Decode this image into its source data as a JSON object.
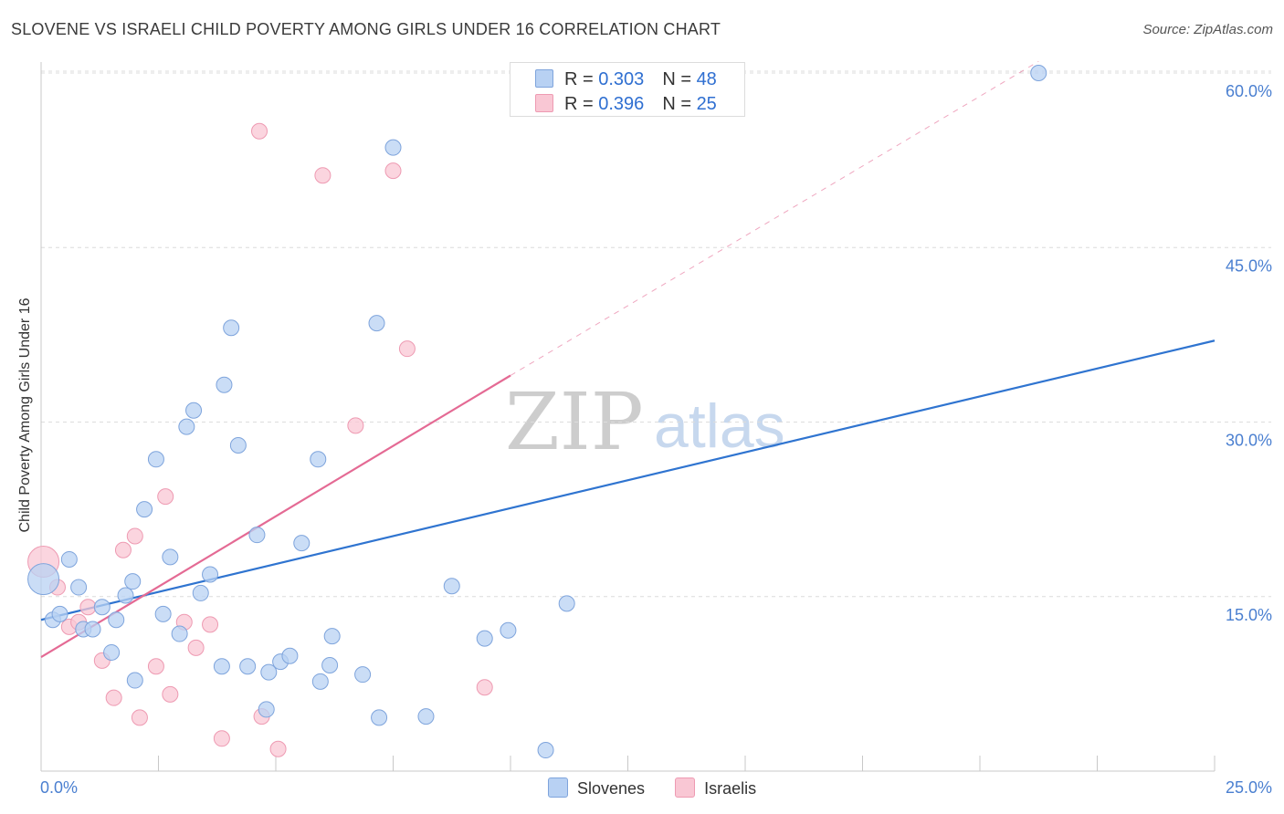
{
  "title": "SLOVENE VS ISRAELI CHILD POVERTY AMONG GIRLS UNDER 16 CORRELATION CHART",
  "source": "Source: ZipAtlas.com",
  "watermark": {
    "zip": "ZIP",
    "atlas": "atlas"
  },
  "legend_top": {
    "rows": [
      {
        "r_label": "R = ",
        "r_value": "0.303",
        "n_label": "N = ",
        "n_value": "48"
      },
      {
        "r_label": "R = ",
        "r_value": "0.396",
        "n_label": "N = ",
        "n_value": "25"
      }
    ]
  },
  "legend_bottom": {
    "items": [
      "Slovenes",
      "Israelis"
    ]
  },
  "colors": {
    "slovenes_fill": "#b8d1f3",
    "slovenes_stroke": "#7ea4dc",
    "slovenes_line": "#2f74d0",
    "israelis_fill": "#f9c7d4",
    "israelis_stroke": "#ee9ab2",
    "israelis_line": "#e46a94",
    "axis_label": "#4a7fd0",
    "grid": "#dcdcdc"
  },
  "chart_data": {
    "type": "scatter",
    "title": "SLOVENE VS ISRAELI CHILD POVERTY AMONG GIRLS UNDER 16 CORRELATION CHART",
    "xlabel": "",
    "ylabel": "Child Poverty Among Girls Under 16",
    "xlim": [
      0,
      25
    ],
    "ylim": [
      0,
      63
    ],
    "x_tick_labels": [
      {
        "value": 0,
        "label": "0.0%"
      },
      {
        "value": 25,
        "label": "25.0%"
      }
    ],
    "y_tick_labels": [
      {
        "value": 15,
        "label": "15.0%"
      },
      {
        "value": 30,
        "label": "30.0%"
      },
      {
        "value": 45,
        "label": "45.0%"
      },
      {
        "value": 60,
        "label": "60.0%"
      }
    ],
    "grid": true,
    "legend_position": "bottom",
    "series": [
      {
        "name": "Slovenes",
        "R": 0.303,
        "N": 48,
        "trend": {
          "x": [
            0,
            25
          ],
          "y": [
            13.0,
            37.0
          ]
        },
        "points": [
          [
            0.05,
            16.5
          ],
          [
            0.25,
            13.0
          ],
          [
            0.4,
            13.5
          ],
          [
            0.6,
            18.2
          ],
          [
            0.8,
            15.8
          ],
          [
            0.9,
            12.2
          ],
          [
            1.1,
            12.2
          ],
          [
            1.3,
            14.1
          ],
          [
            1.5,
            10.2
          ],
          [
            1.6,
            13.0
          ],
          [
            1.8,
            15.1
          ],
          [
            1.95,
            16.3
          ],
          [
            2.0,
            7.8
          ],
          [
            2.2,
            22.5
          ],
          [
            2.45,
            26.8
          ],
          [
            2.6,
            13.5
          ],
          [
            2.75,
            18.4
          ],
          [
            2.95,
            11.8
          ],
          [
            3.1,
            29.6
          ],
          [
            3.25,
            31.0
          ],
          [
            3.4,
            15.3
          ],
          [
            3.6,
            16.9
          ],
          [
            3.85,
            9.0
          ],
          [
            3.9,
            33.2
          ],
          [
            4.05,
            38.1
          ],
          [
            4.2,
            28.0
          ],
          [
            4.4,
            9.0
          ],
          [
            4.6,
            20.3
          ],
          [
            4.8,
            5.3
          ],
          [
            4.85,
            8.5
          ],
          [
            5.1,
            9.4
          ],
          [
            5.3,
            9.9
          ],
          [
            5.55,
            19.6
          ],
          [
            5.9,
            26.8
          ],
          [
            5.95,
            7.7
          ],
          [
            6.15,
            9.1
          ],
          [
            6.2,
            11.6
          ],
          [
            6.85,
            8.3
          ],
          [
            7.15,
            38.5
          ],
          [
            7.2,
            4.6
          ],
          [
            7.5,
            53.6
          ],
          [
            8.2,
            4.7
          ],
          [
            8.75,
            15.9
          ],
          [
            9.45,
            11.4
          ],
          [
            9.95,
            12.1
          ],
          [
            10.75,
            1.8
          ],
          [
            11.2,
            14.4
          ],
          [
            21.25,
            60.0
          ]
        ]
      },
      {
        "name": "Israelis",
        "R": 0.396,
        "N": 25,
        "trend": {
          "x": [
            0,
            10
          ],
          "y": [
            9.8,
            34.0
          ]
        },
        "trend_extension": {
          "x": [
            10,
            21.25
          ],
          "y": [
            34.0,
            61.0
          ]
        },
        "points": [
          [
            0.05,
            18.0
          ],
          [
            0.35,
            15.8
          ],
          [
            0.6,
            12.4
          ],
          [
            0.8,
            12.8
          ],
          [
            1.0,
            14.1
          ],
          [
            1.3,
            9.5
          ],
          [
            1.55,
            6.3
          ],
          [
            1.75,
            19.0
          ],
          [
            2.0,
            20.2
          ],
          [
            2.1,
            4.6
          ],
          [
            2.45,
            9.0
          ],
          [
            2.65,
            23.6
          ],
          [
            2.75,
            6.6
          ],
          [
            3.05,
            12.8
          ],
          [
            3.3,
            10.6
          ],
          [
            3.6,
            12.6
          ],
          [
            3.85,
            2.8
          ],
          [
            4.65,
            55.0
          ],
          [
            4.7,
            4.7
          ],
          [
            5.05,
            1.9
          ],
          [
            6.0,
            51.2
          ],
          [
            6.7,
            29.7
          ],
          [
            7.5,
            51.6
          ],
          [
            7.8,
            36.3
          ],
          [
            9.45,
            7.2
          ]
        ]
      }
    ]
  }
}
